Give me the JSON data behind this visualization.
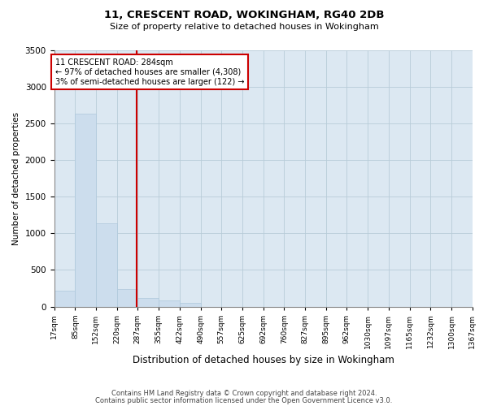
{
  "title": "11, CRESCENT ROAD, WOKINGHAM, RG40 2DB",
  "subtitle": "Size of property relative to detached houses in Wokingham",
  "xlabel": "Distribution of detached houses by size in Wokingham",
  "ylabel": "Number of detached properties",
  "property_size": 284,
  "property_label": "11 CRESCENT ROAD: 284sqm",
  "annotation_line1": "← 97% of detached houses are smaller (4,308)",
  "annotation_line2": "3% of semi-detached houses are larger (122) →",
  "footnote1": "Contains HM Land Registry data © Crown copyright and database right 2024.",
  "footnote2": "Contains public sector information licensed under the Open Government Licence v3.0.",
  "bar_color": "#ccdded",
  "bar_edge_color": "#aec8dc",
  "vline_color": "#cc0000",
  "background_color": "#ffffff",
  "axes_bg_color": "#dce8f2",
  "grid_color": "#b8ccd8",
  "bin_edges": [
    17,
    85,
    152,
    220,
    287,
    355,
    422,
    490,
    557,
    625,
    692,
    760,
    827,
    895,
    962,
    1030,
    1097,
    1165,
    1232,
    1300,
    1367
  ],
  "bin_labels": [
    "17sqm",
    "85sqm",
    "152sqm",
    "220sqm",
    "287sqm",
    "355sqm",
    "422sqm",
    "490sqm",
    "557sqm",
    "625sqm",
    "692sqm",
    "760sqm",
    "827sqm",
    "895sqm",
    "962sqm",
    "1030sqm",
    "1097sqm",
    "1165sqm",
    "1232sqm",
    "1300sqm",
    "1367sqm"
  ],
  "counts": [
    220,
    2630,
    1130,
    240,
    115,
    80,
    50,
    0,
    0,
    0,
    0,
    0,
    0,
    0,
    0,
    0,
    0,
    0,
    0,
    0
  ],
  "ylim": [
    0,
    3500
  ],
  "yticks": [
    0,
    500,
    1000,
    1500,
    2000,
    2500,
    3000,
    3500
  ]
}
